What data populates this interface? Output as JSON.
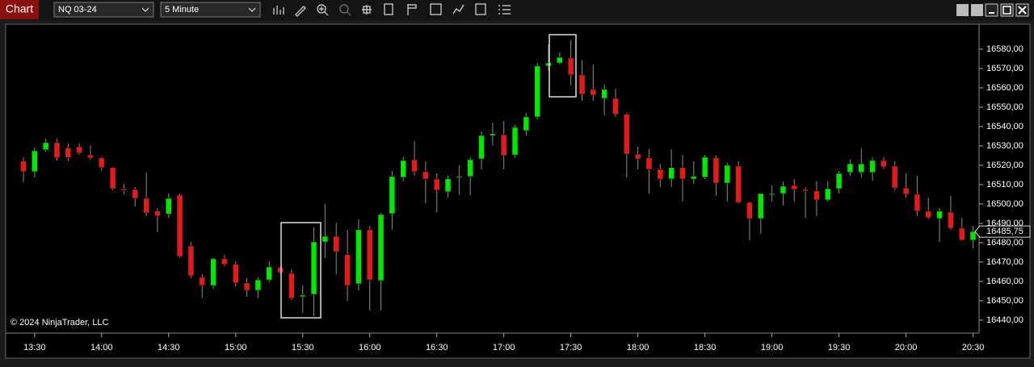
{
  "toolbar": {
    "tab": "Chart",
    "instrument": "NQ 03-24",
    "interval": "5 Minute"
  },
  "chart_data": {
    "type": "candlestick",
    "copyright": "© 2024 NinjaTrader, LLC",
    "last_price_label": "16485,75",
    "up_color": "#00e600",
    "down_color": "#e01b1b",
    "wick_color": "#8c8c8c",
    "x": [
      "13:25",
      "13:30",
      "13:35",
      "13:40",
      "13:45",
      "13:50",
      "13:55",
      "14:00",
      "14:05",
      "14:10",
      "14:15",
      "14:20",
      "14:25",
      "14:30",
      "14:35",
      "14:40",
      "14:45",
      "14:50",
      "14:55",
      "15:00",
      "15:05",
      "15:10",
      "15:15",
      "15:20",
      "15:25",
      "15:30",
      "15:35",
      "15:40",
      "15:45",
      "15:50",
      "15:55",
      "16:00",
      "16:05",
      "16:10",
      "16:15",
      "16:20",
      "16:25",
      "16:30",
      "16:35",
      "16:40",
      "16:45",
      "16:50",
      "16:55",
      "17:00",
      "17:05",
      "17:10",
      "17:15",
      "17:20",
      "17:25",
      "17:30",
      "17:35",
      "17:40",
      "17:45",
      "17:50",
      "17:55",
      "18:00",
      "18:05",
      "18:10",
      "18:15",
      "18:20",
      "18:25",
      "18:30",
      "18:35",
      "18:40",
      "18:45",
      "18:50",
      "18:55",
      "19:00",
      "19:05",
      "19:10",
      "19:15",
      "19:20",
      "19:25",
      "19:30",
      "19:35",
      "19:40",
      "19:45",
      "19:50",
      "19:55",
      "20:00",
      "20:05",
      "20:10",
      "20:15",
      "20:20",
      "20:25",
      "20:30"
    ],
    "open": [
      16522.1,
      16516.7,
      16528.0,
      16531.7,
      16529.0,
      16529.6,
      16525.4,
      16523.8,
      16518.8,
      16507.9,
      16507.5,
      16502.9,
      16496.3,
      16494.9,
      16504.6,
      16478.3,
      16462.1,
      16457.9,
      16471.7,
      16468.8,
      16459.2,
      16455.4,
      16460.8,
      16467.1,
      16464.2,
      16452.1,
      16453.3,
      16480.4,
      16483.3,
      16473.8,
      16458.8,
      16486.7,
      16460.4,
      16495.0,
      16513.8,
      16522.9,
      16516.7,
      16512.9,
      16506.3,
      16514.0,
      16514.2,
      16523.3,
      16535.4,
      16535.8,
      16525.4,
      16537.9,
      16545.0,
      16571.3,
      16572.9,
      16575.4,
      16566.7,
      16559.2,
      16554.6,
      16554.6,
      16546.3,
      16525.8,
      16523.8,
      16517.9,
      16513.0,
      16518.8,
      16512.9,
      16513.8,
      16523.8,
      16510.8,
      16519.6,
      16500.8,
      16492.5,
      16505.0,
      16505.4,
      16509.6,
      16507.5,
      16506.7,
      16502.1,
      16507.9,
      16516.3,
      16516.3,
      16516.3,
      16522.5,
      16519.6,
      16508.3,
      16505.0,
      16496.3,
      16492.5,
      16495.8,
      16487.5,
      16481.3
    ],
    "high": [
      16524.2,
      16529.2,
      16533.8,
      16533.8,
      16531.3,
      16531.3,
      16530.4,
      16524.6,
      16519.2,
      16510.4,
      16508.8,
      16516.3,
      16497.9,
      16505.4,
      16505.4,
      16480.4,
      16463.8,
      16472.1,
      16473.8,
      16470.4,
      16461.7,
      16462.1,
      16470.4,
      16467.9,
      16466.3,
      16457.9,
      16487.9,
      16500.0,
      16490.4,
      16486.7,
      16492.1,
      16488.8,
      16495.4,
      16517.1,
      16524.2,
      16532.5,
      16522.1,
      16515.8,
      16514.6,
      16520.0,
      16524.2,
      16537.5,
      16542.1,
      16542.9,
      16540.8,
      16547.1,
      16572.9,
      16582.5,
      16578.3,
      16584.6,
      16574.2,
      16572.1,
      16561.7,
      16559.6,
      16547.1,
      16529.6,
      16528.3,
      16520.8,
      16528.3,
      16525.4,
      16522.1,
      16525.4,
      16525.0,
      16521.3,
      16522.1,
      16501.3,
      16505.4,
      16509.6,
      16511.7,
      16512.9,
      16508.8,
      16511.7,
      16511.7,
      16517.1,
      16522.9,
      16528.8,
      16524.2,
      16524.2,
      16522.1,
      16515.8,
      16514.6,
      16503.3,
      16497.9,
      16504.2,
      16492.9,
      16488.8
    ],
    "low": [
      16511.3,
      16513.8,
      16527.1,
      16522.5,
      16522.1,
      16525.4,
      16522.9,
      16517.1,
      16507.1,
      16505.0,
      16498.8,
      16493.8,
      16485.4,
      16492.9,
      16472.1,
      16461.7,
      16451.3,
      16456.3,
      16467.9,
      16457.5,
      16452.1,
      16451.3,
      16459.6,
      16463.8,
      16450.4,
      16443.8,
      16442.1,
      16472.1,
      16463.8,
      16450.0,
      16455.4,
      16445.0,
      16445.0,
      16486.7,
      16511.7,
      16514.6,
      16500.4,
      16495.8,
      16503.3,
      16504.6,
      16504.6,
      16517.9,
      16530.4,
      16517.9,
      16523.8,
      16535.4,
      16543.8,
      16568.8,
      16572.1,
      16561.3,
      16553.3,
      16553.3,
      16545.8,
      16545.0,
      16513.8,
      16517.9,
      16505.4,
      16508.8,
      16508.8,
      16501.3,
      16510.4,
      16512.9,
      16504.2,
      16501.3,
      16500.4,
      16481.3,
      16484.6,
      16501.3,
      16499.2,
      16501.3,
      16492.9,
      16493.8,
      16501.3,
      16505.4,
      16514.6,
      16513.8,
      16512.1,
      16517.9,
      16507.1,
      16503.3,
      16493.8,
      16492.1,
      16480.4,
      16486.7,
      16481.3,
      16477.1
    ],
    "close": [
      16516.7,
      16527.5,
      16531.7,
      16523.8,
      16524.0,
      16526.3,
      16523.8,
      16518.8,
      16507.9,
      16507.1,
      16502.9,
      16495.4,
      16493.8,
      16502.9,
      16472.9,
      16462.9,
      16457.9,
      16471.7,
      16468.8,
      16459.2,
      16455.4,
      16460.8,
      16467.5,
      16464.6,
      16451.3,
      16452.9,
      16480.4,
      16483.3,
      16475.4,
      16457.9,
      16486.7,
      16460.8,
      16494.6,
      16514.2,
      16522.5,
      16516.7,
      16512.9,
      16507.1,
      16513.0,
      16514.2,
      16522.9,
      16535.4,
      16536.3,
      16525.0,
      16539.6,
      16545.0,
      16571.3,
      16572.9,
      16575.8,
      16566.7,
      16556.7,
      16556.3,
      16559.2,
      16546.3,
      16525.8,
      16523.3,
      16517.9,
      16512.9,
      16518.8,
      16512.9,
      16514.2,
      16524.2,
      16510.8,
      16520.0,
      16500.8,
      16492.5,
      16505.4,
      16505.4,
      16509.2,
      16507.5,
      16506.7,
      16502.1,
      16507.9,
      16515.8,
      16520.8,
      16520.8,
      16522.5,
      16519.2,
      16508.3,
      16505.0,
      16496.3,
      16492.9,
      16496.3,
      16487.5,
      16481.3,
      16485.75
    ],
    "xticks": [
      "13:30",
      "14:00",
      "14:30",
      "15:00",
      "15:30",
      "16:00",
      "16:30",
      "17:00",
      "17:30",
      "18:00",
      "18:30",
      "19:00",
      "19:30",
      "20:00",
      "20:30"
    ],
    "ylim": [
      16433.3,
      16592.9
    ],
    "yticks": [
      {
        "value": 16440,
        "label": "16440,00"
      },
      {
        "value": 16450,
        "label": "16450,00"
      },
      {
        "value": 16460,
        "label": "16460,00"
      },
      {
        "value": 16470,
        "label": "16470,00"
      },
      {
        "value": 16480,
        "label": "16480,00"
      },
      {
        "value": 16490,
        "label": "16490,00"
      },
      {
        "value": 16500,
        "label": "16500,00"
      },
      {
        "value": 16510,
        "label": "16510,00"
      },
      {
        "value": 16520,
        "label": "16520,00"
      },
      {
        "value": 16530,
        "label": "16530,00"
      },
      {
        "value": 16540,
        "label": "16540,00"
      },
      {
        "value": 16550,
        "label": "16550,00"
      },
      {
        "value": 16560,
        "label": "16560,00"
      },
      {
        "value": 16570,
        "label": "16570,00"
      },
      {
        "value": 16580,
        "label": "16580,00"
      }
    ]
  }
}
